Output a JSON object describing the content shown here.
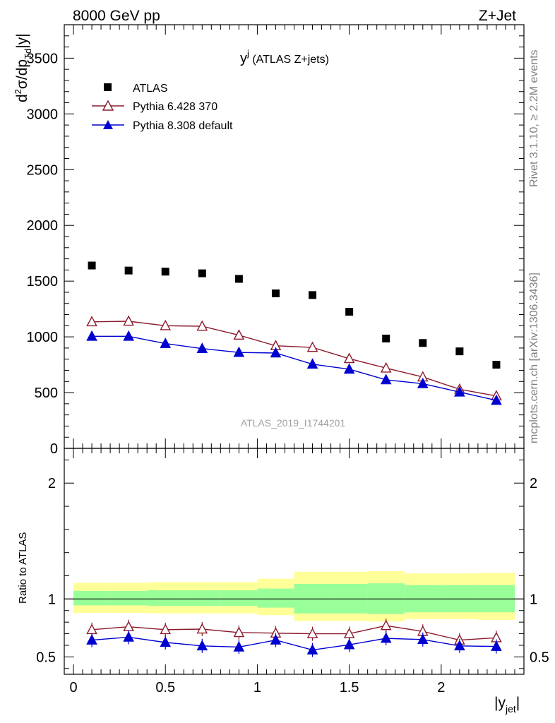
{
  "header": {
    "left": "8000 GeV pp",
    "right": "Z+Jet"
  },
  "side_labels": {
    "rivet": "Rivet 3.1.10, ≥ 2.2M events",
    "mcplots": "mcplots.cern.ch [arXiv:1306.3436]"
  },
  "watermark": "ATLAS_2019_I1744201",
  "chart_data": {
    "type": "scatter",
    "title_main": "y",
    "title_sup": "j",
    "title_rest": " (ATLAS Z+jets)",
    "xlabel_main": "|y",
    "xlabel_sub": "jet",
    "xlabel_close": "|",
    "ylabel": {
      "a": "d",
      "b": "2",
      "c": "σ/dp",
      "d": "T",
      "e": "d",
      "f": "|y|"
    },
    "ratio_ylabel": "Ratio to ATLAS",
    "xlim": [
      -0.05,
      2.45
    ],
    "ylim": [
      0,
      3800
    ],
    "ratio_ylim": [
      0.35,
      2.3
    ],
    "x_ticks": [
      "0",
      "0.5",
      "1",
      "1.5",
      "2"
    ],
    "y_ticks": [
      "0",
      "500",
      "1000",
      "1500",
      "2000",
      "2500",
      "3000",
      "3500"
    ],
    "ratio_ticks": [
      "0.5",
      "1",
      "2"
    ],
    "x": [
      0.1,
      0.3,
      0.5,
      0.7,
      0.9,
      1.1,
      1.3,
      1.5,
      1.7,
      1.9,
      2.1,
      2.3
    ],
    "bin_edges": [
      0.0,
      0.2,
      0.4,
      0.6,
      0.8,
      1.0,
      1.2,
      1.4,
      1.6,
      1.8,
      2.0,
      2.2,
      2.4
    ],
    "series": [
      {
        "name": "ATLAS",
        "color": "#000000",
        "marker": "square",
        "values": [
          1640,
          1595,
          1585,
          1570,
          1520,
          1390,
          1375,
          1225,
          985,
          945,
          870,
          750
        ],
        "ratio": [
          1,
          1,
          1,
          1,
          1,
          1,
          1,
          1,
          1,
          1,
          1,
          1
        ]
      },
      {
        "name": "Pythia 6.428 370",
        "color": "#8b1a2b",
        "marker": "triangle-open",
        "values": [
          1135,
          1140,
          1100,
          1095,
          1015,
          920,
          905,
          805,
          720,
          640,
          530,
          470
        ],
        "ratio": [
          0.735,
          0.76,
          0.735,
          0.74,
          0.71,
          0.705,
          0.7,
          0.7,
          0.77,
          0.72,
          0.645,
          0.665
        ]
      },
      {
        "name": "Pythia 8.308 default",
        "color": "#0000d0",
        "marker": "triangle-filled",
        "values": [
          1005,
          1005,
          940,
          895,
          860,
          855,
          755,
          710,
          615,
          580,
          505,
          430
        ],
        "ratio": [
          0.645,
          0.67,
          0.625,
          0.595,
          0.585,
          0.645,
          0.56,
          0.605,
          0.66,
          0.65,
          0.595,
          0.59
        ]
      }
    ],
    "band_yellow": [
      [
        0.88,
        1.14
      ],
      [
        0.88,
        1.14
      ],
      [
        0.875,
        1.145
      ],
      [
        0.875,
        1.145
      ],
      [
        0.875,
        1.145
      ],
      [
        0.86,
        1.175
      ],
      [
        0.81,
        1.235
      ],
      [
        0.81,
        1.235
      ],
      [
        0.805,
        1.24
      ],
      [
        0.825,
        1.22
      ],
      [
        0.825,
        1.22
      ],
      [
        0.82,
        1.225
      ]
    ],
    "band_green": [
      [
        0.945,
        1.07
      ],
      [
        0.945,
        1.07
      ],
      [
        0.94,
        1.075
      ],
      [
        0.94,
        1.075
      ],
      [
        0.94,
        1.075
      ],
      [
        0.925,
        1.09
      ],
      [
        0.875,
        1.13
      ],
      [
        0.875,
        1.13
      ],
      [
        0.87,
        1.135
      ],
      [
        0.885,
        1.12
      ],
      [
        0.885,
        1.12
      ],
      [
        0.885,
        1.12
      ]
    ]
  }
}
